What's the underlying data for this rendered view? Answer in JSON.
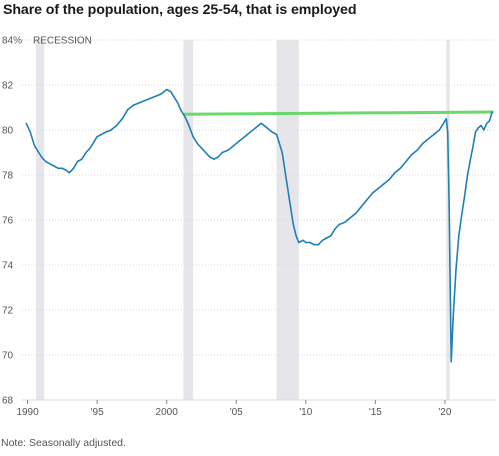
{
  "title": "Share of the population, ages 25-54, that is employed",
  "note": "Note: Seasonally adjusted.",
  "recession_label": "RECESSION",
  "colors": {
    "line": "#1f7fb6",
    "recession": "#e6e6ea",
    "reference_line": "#6ad96a",
    "grid": "#d9d9d9",
    "text": "#555555"
  },
  "chart_data": {
    "type": "line",
    "xlim": [
      1989.6,
      2023.6
    ],
    "ylim": [
      68,
      84
    ],
    "yticks": [
      68,
      70,
      72,
      74,
      76,
      78,
      80,
      82,
      84
    ],
    "ytick_labels": [
      "68",
      "70",
      "72",
      "74",
      "76",
      "78",
      "80",
      "82",
      "84%"
    ],
    "xticks": [
      1990,
      1995,
      2000,
      2005,
      2010,
      2015,
      2020
    ],
    "xtick_labels": [
      "1990",
      "'95",
      "2000",
      "'05",
      "'10",
      "'15",
      "'20"
    ],
    "recessions": [
      [
        1990.6,
        1991.2
      ],
      [
        2001.2,
        2001.9
      ],
      [
        2007.9,
        2009.5
      ],
      [
        2020.1,
        2020.35
      ]
    ],
    "reference_line": {
      "x": [
        2001.3,
        2023.4
      ],
      "y": [
        80.7,
        80.8
      ]
    },
    "series": [
      {
        "x": [
          1989.9,
          1990.2,
          1990.5,
          1990.8,
          1991.0,
          1991.3,
          1991.6,
          1991.9,
          1992.2,
          1992.5,
          1992.8,
          1993.0,
          1993.3,
          1993.6,
          1993.9,
          1994.2,
          1994.5,
          1994.8,
          1995.0,
          1995.3,
          1995.6,
          1996.0,
          1996.4,
          1996.8,
          1997.2,
          1997.6,
          1998.0,
          1998.4,
          1998.8,
          1999.2,
          1999.6,
          2000.0,
          2000.3,
          2000.5,
          2000.8,
          2001.0,
          2001.3,
          2001.6,
          2001.9,
          2002.2,
          2002.5,
          2002.8,
          2003.1,
          2003.4,
          2003.7,
          2004.0,
          2004.4,
          2004.8,
          2005.2,
          2005.6,
          2006.0,
          2006.4,
          2006.8,
          2007.2,
          2007.6,
          2007.9,
          2008.3,
          2008.6,
          2008.9,
          2009.1,
          2009.3,
          2009.5,
          2009.8,
          2010.0,
          2010.3,
          2010.6,
          2010.9,
          2011.2,
          2011.5,
          2011.8,
          2012.1,
          2012.4,
          2012.8,
          2013.2,
          2013.6,
          2014.0,
          2014.4,
          2014.8,
          2015.2,
          2015.6,
          2016.0,
          2016.4,
          2016.8,
          2017.2,
          2017.6,
          2018.0,
          2018.4,
          2018.8,
          2019.2,
          2019.6,
          2020.0,
          2020.1,
          2020.2,
          2020.3,
          2020.45,
          2020.6,
          2020.8,
          2021.0,
          2021.2,
          2021.4,
          2021.6,
          2021.8,
          2022.0,
          2022.2,
          2022.4,
          2022.6,
          2022.8,
          2023.0,
          2023.2,
          2023.4
        ],
        "y": [
          80.3,
          79.9,
          79.3,
          79.0,
          78.8,
          78.6,
          78.5,
          78.4,
          78.3,
          78.3,
          78.2,
          78.1,
          78.3,
          78.6,
          78.7,
          79.0,
          79.2,
          79.5,
          79.7,
          79.8,
          79.9,
          80.0,
          80.2,
          80.5,
          80.9,
          81.1,
          81.2,
          81.3,
          81.4,
          81.5,
          81.6,
          81.8,
          81.7,
          81.5,
          81.2,
          80.9,
          80.6,
          80.2,
          79.7,
          79.4,
          79.2,
          79.0,
          78.8,
          78.7,
          78.8,
          79.0,
          79.1,
          79.3,
          79.5,
          79.7,
          79.9,
          80.1,
          80.3,
          80.1,
          79.9,
          79.8,
          79.0,
          77.8,
          76.6,
          75.8,
          75.3,
          75.0,
          75.1,
          75.0,
          75.0,
          74.9,
          74.9,
          75.1,
          75.2,
          75.3,
          75.6,
          75.8,
          75.9,
          76.1,
          76.3,
          76.6,
          76.9,
          77.2,
          77.4,
          77.6,
          77.8,
          78.1,
          78.3,
          78.6,
          78.9,
          79.1,
          79.4,
          79.6,
          79.8,
          80.0,
          80.4,
          80.5,
          79.9,
          76.8,
          69.7,
          71.8,
          73.8,
          75.3,
          76.2,
          77.0,
          77.9,
          78.6,
          79.2,
          79.9,
          80.1,
          80.2,
          80.0,
          80.3,
          80.4,
          80.8
        ]
      }
    ]
  }
}
